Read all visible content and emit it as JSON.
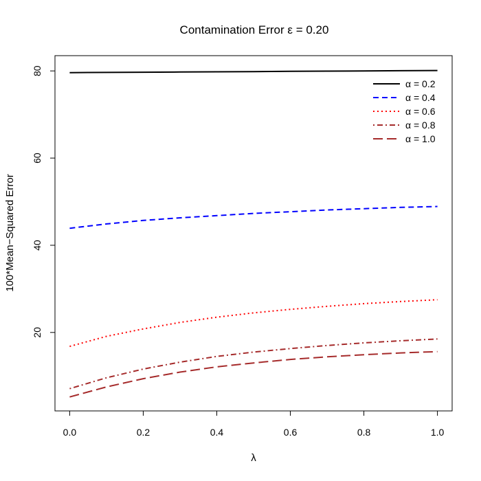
{
  "chart_data": {
    "type": "line",
    "title": "Contamination Error ε = 0.20",
    "xlabel": "λ",
    "ylabel": "100*Mean−Squared Error",
    "xlim": [
      -0.04,
      1.04
    ],
    "ylim": [
      2.0,
      83.5
    ],
    "xticks": [
      0.0,
      0.2,
      0.4,
      0.6,
      0.8,
      1.0
    ],
    "xtick_labels": [
      "0.0",
      "0.2",
      "0.4",
      "0.6",
      "0.8",
      "1.0"
    ],
    "yticks": [
      20,
      40,
      60,
      80
    ],
    "ytick_labels": [
      "20",
      "40",
      "60",
      "80"
    ],
    "grid": false,
    "legend_position": "top-right",
    "x": [
      0.0,
      0.1,
      0.2,
      0.3,
      0.4,
      0.5,
      0.6,
      0.7,
      0.8,
      0.9,
      1.0
    ],
    "series": [
      {
        "name": "α = 0.2",
        "color": "#000000",
        "dash": "solid",
        "values": [
          79.6,
          79.65,
          79.7,
          79.75,
          79.8,
          79.85,
          79.9,
          79.95,
          80.0,
          80.05,
          80.1
        ]
      },
      {
        "name": "α = 0.4",
        "color": "#0000ff",
        "dash": "dashed",
        "values": [
          43.9,
          44.9,
          45.7,
          46.3,
          46.8,
          47.3,
          47.7,
          48.1,
          48.4,
          48.7,
          48.9
        ]
      },
      {
        "name": "α = 0.6",
        "color": "#ff0000",
        "dash": "dotted",
        "values": [
          16.8,
          19.1,
          20.8,
          22.3,
          23.5,
          24.5,
          25.3,
          26.0,
          26.6,
          27.1,
          27.5
        ]
      },
      {
        "name": "α = 0.8",
        "color": "#a52a2a",
        "dash": "dotdash",
        "values": [
          7.1,
          9.6,
          11.6,
          13.2,
          14.5,
          15.5,
          16.3,
          17.0,
          17.6,
          18.1,
          18.5
        ]
      },
      {
        "name": "α = 1.0",
        "color": "#a52a2a",
        "dash": "longdash",
        "values": [
          5.2,
          7.5,
          9.4,
          10.9,
          12.1,
          13.0,
          13.8,
          14.4,
          14.9,
          15.3,
          15.6
        ]
      }
    ]
  }
}
